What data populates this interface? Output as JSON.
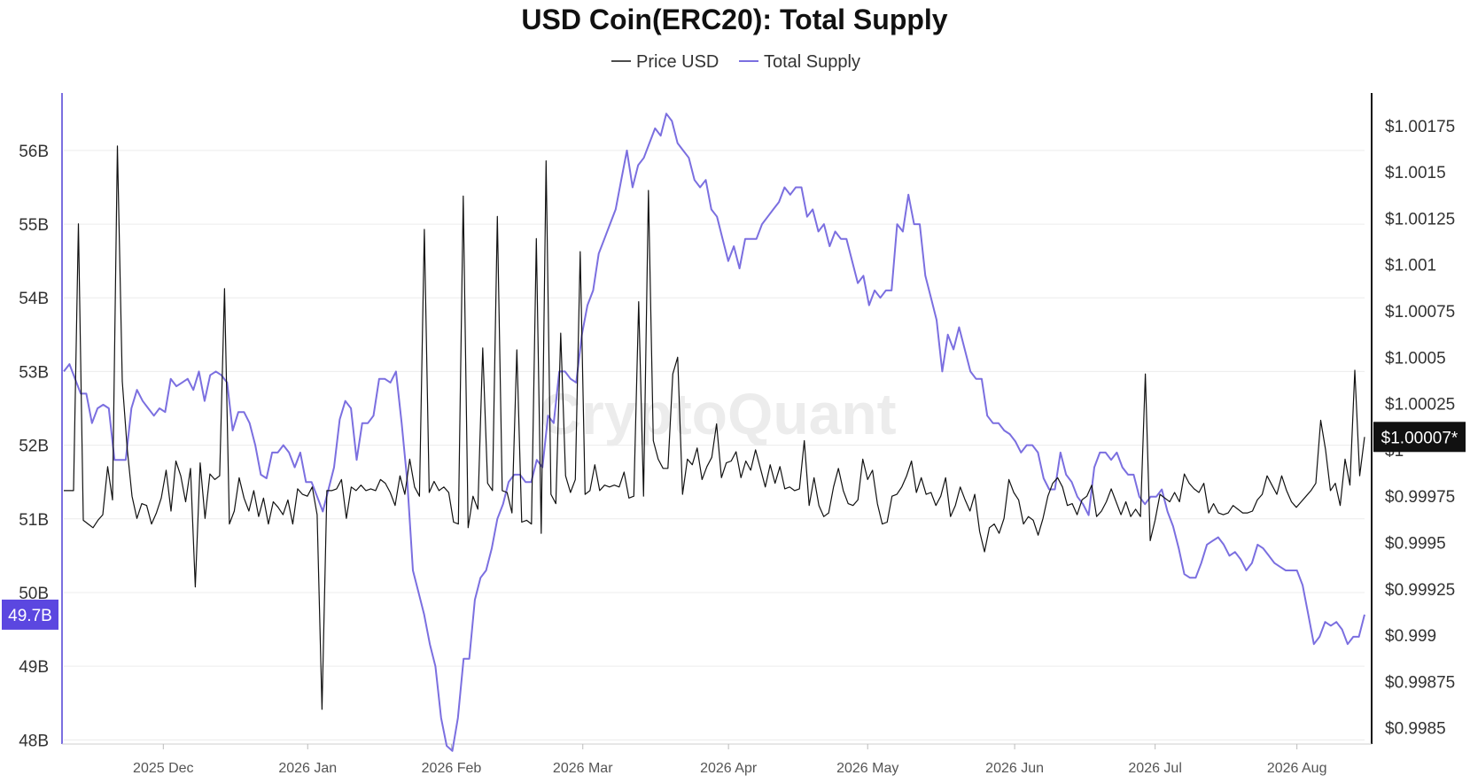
{
  "chart_data": {
    "type": "line",
    "title": "USD Coin(ERC20): Total Supply",
    "watermark": "CryptoQuant",
    "legend": [
      {
        "name": "Price USD",
        "color": "#111111"
      },
      {
        "name": "Total Supply",
        "color": "#7b6fe0"
      }
    ],
    "x_ticks": [
      "2025 Dec",
      "2026 Jan",
      "2026 Feb",
      "2026 Mar",
      "2026 Apr",
      "2026 May",
      "2026 Jun",
      "2026 Jul",
      "2026 Aug"
    ],
    "left_axis": {
      "ticks": [
        "48B",
        "49B",
        "50B",
        "51B",
        "52B",
        "53B",
        "54B",
        "55B",
        "56B"
      ],
      "ylim": [
        47.98,
        56.78
      ],
      "current_label": "49.7B",
      "current_value": 49.7,
      "color": "#7b6fe0"
    },
    "right_axis": {
      "ticks": [
        "$0.9985",
        "$0.99875",
        "$0.999",
        "$0.99925",
        "$0.9995",
        "$0.99975",
        "$1",
        "$1.00025",
        "$1.0005",
        "$1.00075",
        "$1.001",
        "$1.00125",
        "$1.0015",
        "$1.00175"
      ],
      "ylim": [
        0.998427,
        1.001926
      ],
      "current_label": "$1.00007*",
      "current_value": 1.00007,
      "color": "#111111"
    },
    "series": [
      {
        "name": "Total Supply",
        "axis": "left",
        "color": "#7b6fe0",
        "values": [
          53.0,
          53.1,
          52.9,
          52.7,
          52.7,
          52.3,
          52.5,
          52.55,
          52.5,
          51.8,
          51.8,
          51.8,
          52.5,
          52.75,
          52.6,
          52.5,
          52.4,
          52.5,
          52.45,
          52.9,
          52.8,
          52.85,
          52.9,
          52.75,
          53.0,
          52.6,
          52.95,
          53.0,
          52.95,
          52.85,
          52.2,
          52.45,
          52.45,
          52.3,
          52.0,
          51.6,
          51.55,
          51.9,
          51.9,
          52.0,
          51.9,
          51.7,
          51.9,
          51.5,
          51.5,
          51.3,
          51.1,
          51.4,
          51.7,
          52.35,
          52.6,
          52.5,
          51.8,
          52.3,
          52.3,
          52.4,
          52.9,
          52.9,
          52.85,
          53.0,
          52.3,
          51.5,
          50.3,
          50.0,
          49.7,
          49.3,
          49.0,
          48.3,
          47.92,
          47.85,
          48.3,
          49.1,
          49.1,
          49.9,
          50.2,
          50.3,
          50.6,
          51.0,
          51.2,
          51.5,
          51.6,
          51.6,
          51.5,
          51.5,
          51.8,
          51.7,
          52.4,
          52.3,
          53.0,
          53.0,
          52.9,
          52.85,
          53.5,
          53.9,
          54.1,
          54.6,
          54.8,
          55.0,
          55.2,
          55.6,
          56.0,
          55.5,
          55.8,
          55.9,
          56.1,
          56.3,
          56.2,
          56.5,
          56.4,
          56.1,
          56.0,
          55.9,
          55.6,
          55.5,
          55.6,
          55.2,
          55.1,
          54.8,
          54.5,
          54.7,
          54.4,
          54.8,
          54.8,
          54.8,
          55.0,
          55.1,
          55.2,
          55.3,
          55.5,
          55.4,
          55.5,
          55.5,
          55.1,
          55.2,
          54.9,
          55.0,
          54.7,
          54.9,
          54.8,
          54.8,
          54.5,
          54.2,
          54.3,
          53.9,
          54.1,
          54.0,
          54.1,
          54.1,
          55.0,
          54.9,
          55.4,
          55.0,
          55.0,
          54.3,
          54.0,
          53.7,
          53.0,
          53.5,
          53.3,
          53.6,
          53.3,
          53.0,
          52.9,
          52.9,
          52.4,
          52.3,
          52.3,
          52.2,
          52.15,
          52.05,
          51.9,
          52.0,
          52.0,
          51.9,
          51.55,
          51.4,
          51.4,
          51.9,
          51.6,
          51.5,
          51.3,
          51.2,
          51.05,
          51.7,
          51.9,
          51.9,
          51.8,
          51.9,
          51.7,
          51.6,
          51.6,
          51.3,
          51.2,
          51.3,
          51.3,
          51.4,
          51.1,
          50.9,
          50.6,
          50.25,
          50.2,
          50.2,
          50.4,
          50.65,
          50.7,
          50.75,
          50.65,
          50.5,
          50.55,
          50.45,
          50.3,
          50.4,
          50.65,
          50.6,
          50.5,
          50.4,
          50.35,
          50.3,
          50.3,
          50.3,
          50.1,
          49.7,
          49.3,
          49.4,
          49.6,
          49.55,
          49.6,
          49.5,
          49.3,
          49.4,
          49.4,
          49.7
        ]
      },
      {
        "name": "Price USD",
        "axis": "right",
        "color": "#111111",
        "values": [
          0.99978,
          0.99978,
          0.99978,
          1.00122,
          0.99962,
          0.9996,
          0.99958,
          0.99962,
          0.99965,
          0.99991,
          0.99973,
          1.00164,
          1.00037,
          1.00001,
          0.99975,
          0.99963,
          0.99971,
          0.9997,
          0.9996,
          0.99966,
          0.99974,
          0.99989,
          0.99967,
          0.99994,
          0.99986,
          0.99972,
          0.9999,
          0.99926,
          0.99993,
          0.99963,
          0.99987,
          0.99984,
          0.99986,
          1.00087,
          0.9996,
          0.99967,
          0.99985,
          0.99974,
          0.99967,
          0.99978,
          0.99964,
          0.99974,
          0.9996,
          0.99972,
          0.99969,
          0.99965,
          0.99973,
          0.9996,
          0.99979,
          0.99976,
          0.99975,
          0.9998,
          0.99965,
          0.9986,
          0.99978,
          0.99978,
          0.99979,
          0.99984,
          0.99963,
          0.9998,
          0.99978,
          0.99981,
          0.99978,
          0.99979,
          0.99978,
          0.99984,
          0.99982,
          0.99977,
          0.9997,
          0.99986,
          0.99976,
          0.99995,
          0.9998,
          0.99975,
          1.00119,
          0.99977,
          0.99983,
          0.99978,
          0.9998,
          0.99977,
          0.99961,
          0.9996,
          1.00137,
          0.99958,
          0.99975,
          0.99968,
          1.00055,
          0.99982,
          0.99978,
          1.00126,
          0.99978,
          0.99977,
          0.99966,
          1.00054,
          0.99961,
          0.99962,
          0.9996,
          1.00114,
          0.99955,
          1.00156,
          0.99976,
          0.99971,
          1.00063,
          0.99986,
          0.99977,
          0.99984,
          1.00107,
          0.99976,
          0.99978,
          0.99992,
          0.99978,
          0.99981,
          0.9998,
          0.99981,
          0.9998,
          0.99988,
          0.99974,
          0.99975,
          1.0008,
          0.99975,
          1.0014,
          1.00005,
          0.99995,
          0.9999,
          0.9999,
          1.00041,
          1.0005,
          0.99976,
          0.99995,
          0.99992,
          1.00001,
          0.99984,
          0.99991,
          0.99996,
          1.00014,
          0.99985,
          0.99993,
          0.99994,
          0.99999,
          0.99985,
          0.99994,
          0.99989,
          1.0,
          0.9999,
          0.9998,
          0.99992,
          0.99982,
          0.99991,
          0.99979,
          0.9998,
          0.99978,
          0.99979,
          1.00005,
          0.9997,
          0.99985,
          0.9997,
          0.99964,
          0.99966,
          0.9998,
          0.9999,
          0.99978,
          0.99971,
          0.9997,
          0.99973,
          0.99995,
          0.99984,
          0.99989,
          0.99971,
          0.9996,
          0.99961,
          0.99975,
          0.99976,
          0.9998,
          0.99986,
          0.99994,
          0.99977,
          0.99985,
          0.99976,
          0.99977,
          0.9997,
          0.99975,
          0.99985,
          0.99964,
          0.9997,
          0.9998,
          0.99973,
          0.99967,
          0.99976,
          0.99956,
          0.99945,
          0.99958,
          0.9996,
          0.99955,
          0.99963,
          0.99984,
          0.99977,
          0.99973,
          0.9996,
          0.99964,
          0.99962,
          0.99954,
          0.99963,
          0.99975,
          0.99982,
          0.99985,
          0.9998,
          0.9997,
          0.99971,
          0.99965,
          0.99973,
          0.99975,
          0.99981,
          0.99964,
          0.99967,
          0.99972,
          0.99979,
          0.99972,
          0.99965,
          0.99972,
          0.99964,
          0.99968,
          0.99964,
          1.00041,
          0.99951,
          0.99962,
          0.99976,
          0.99974,
          0.99972,
          0.99977,
          0.99972,
          0.99987,
          0.99982,
          0.99979,
          0.99977,
          0.99982,
          0.99966,
          0.99971,
          0.99966,
          0.99965,
          0.99966,
          0.9997,
          0.99968,
          0.99966,
          0.99966,
          0.99967,
          0.99973,
          0.99976,
          0.99986,
          0.99981,
          0.99976,
          0.99986,
          0.99978,
          0.99972,
          0.99969,
          0.99972,
          0.99975,
          0.99978,
          0.99982,
          1.00016,
          1.0,
          0.99978,
          0.99982,
          0.9997,
          0.99995,
          0.99981,
          1.00043,
          0.99986,
          1.00007
        ]
      }
    ]
  }
}
